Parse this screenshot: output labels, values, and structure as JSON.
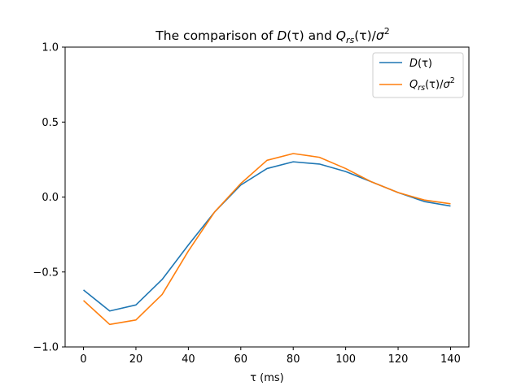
{
  "chart_data": {
    "type": "line",
    "title_parts": {
      "prefix": "The comparison of ",
      "d_symbol": "D",
      "d_arg": "(τ)",
      "joiner": " and ",
      "q_symbol": "Q",
      "q_sub": "rs",
      "q_arg": "(τ)/",
      "sigma": "σ",
      "sigma_exp": "2"
    },
    "xlabel": "τ (ms)",
    "ylabel": "",
    "xlim": [
      -7,
      147
    ],
    "ylim": [
      -1.0,
      1.0
    ],
    "xticks": [
      0,
      20,
      40,
      60,
      80,
      100,
      120,
      140
    ],
    "xtick_labels": [
      "0",
      "20",
      "40",
      "60",
      "80",
      "100",
      "120",
      "140"
    ],
    "yticks": [
      -1.0,
      -0.5,
      0.0,
      0.5,
      1.0
    ],
    "ytick_labels": [
      "−1.0",
      "−0.5",
      "0.0",
      "0.5",
      "1.0"
    ],
    "grid": false,
    "legend_position": "top-right",
    "x": [
      0,
      10,
      20,
      30,
      40,
      50,
      60,
      70,
      80,
      90,
      100,
      110,
      120,
      130,
      140
    ],
    "series": [
      {
        "name": "D(τ)",
        "label_parts": {
          "symbol": "D",
          "arg": "(τ)"
        },
        "color": "#1f77b4",
        "values": [
          -0.62,
          -0.76,
          -0.72,
          -0.55,
          -0.32,
          -0.1,
          0.08,
          0.19,
          0.235,
          0.22,
          0.17,
          0.1,
          0.03,
          -0.03,
          -0.06
        ]
      },
      {
        "name": "Qrs(τ)/σ²",
        "label_parts": {
          "symbol": "Q",
          "sub": "rs",
          "arg": "(τ)/",
          "sigma": "σ",
          "exp": "2"
        },
        "color": "#ff7f0e",
        "values": [
          -0.69,
          -0.85,
          -0.82,
          -0.65,
          -0.36,
          -0.1,
          0.09,
          0.245,
          0.29,
          0.265,
          0.19,
          0.1,
          0.03,
          -0.02,
          -0.045
        ]
      }
    ]
  }
}
